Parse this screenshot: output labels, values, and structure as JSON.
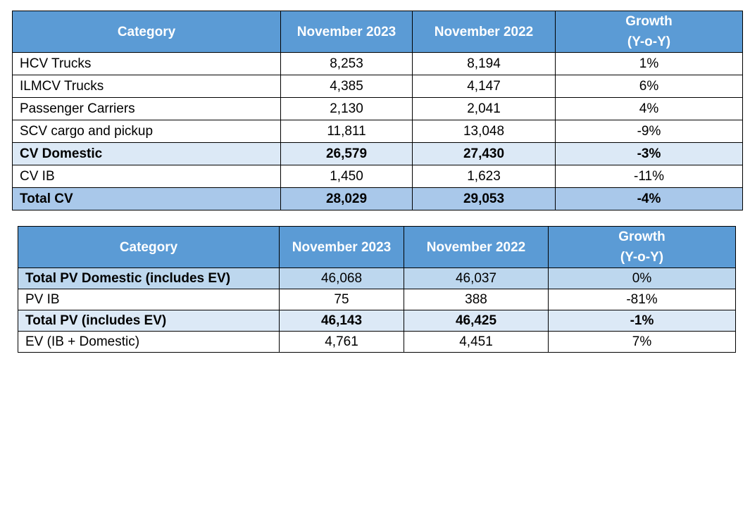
{
  "cv_table": {
    "headers": [
      "Category",
      "November 2023",
      "November 2022",
      "Growth",
      "(Y-o-Y)"
    ],
    "rows": [
      [
        "HCV Trucks",
        "8,253",
        "8,194",
        "1%"
      ],
      [
        "ILMCV Trucks",
        "4,385",
        "4,147",
        "6%"
      ],
      [
        "Passenger Carriers",
        "2,130",
        "2,041",
        "4%"
      ],
      [
        "SCV cargo and pickup",
        "11,811",
        "13,048",
        "-9%"
      ],
      [
        "CV Domestic",
        "26,579",
        "27,430",
        "-3%"
      ],
      [
        "CV IB",
        "1,450",
        "1,623",
        "-11%"
      ],
      [
        "Total CV",
        "28,029",
        "29,053",
        "-4%"
      ]
    ]
  },
  "pv_table": {
    "headers": [
      "Category",
      "November 2023",
      "November 2022",
      "Growth",
      "(Y-o-Y)"
    ],
    "rows": [
      [
        "Total PV Domestic (includes EV)",
        "46,068",
        "46,037",
        "0%"
      ],
      [
        "PV IB",
        "75",
        "388",
        "-81%"
      ],
      [
        "Total PV (includes EV)",
        "46,143",
        "46,425",
        "-1%"
      ],
      [
        "EV (IB + Domestic)",
        "4,761",
        "4,451",
        "7%"
      ]
    ]
  },
  "colors": {
    "header_bg": "#5b9bd5",
    "subtotal_bg": "#dce9f6",
    "total_bg": "#a9c8ea",
    "pv_domestic_bg": "#bdd7ee"
  }
}
